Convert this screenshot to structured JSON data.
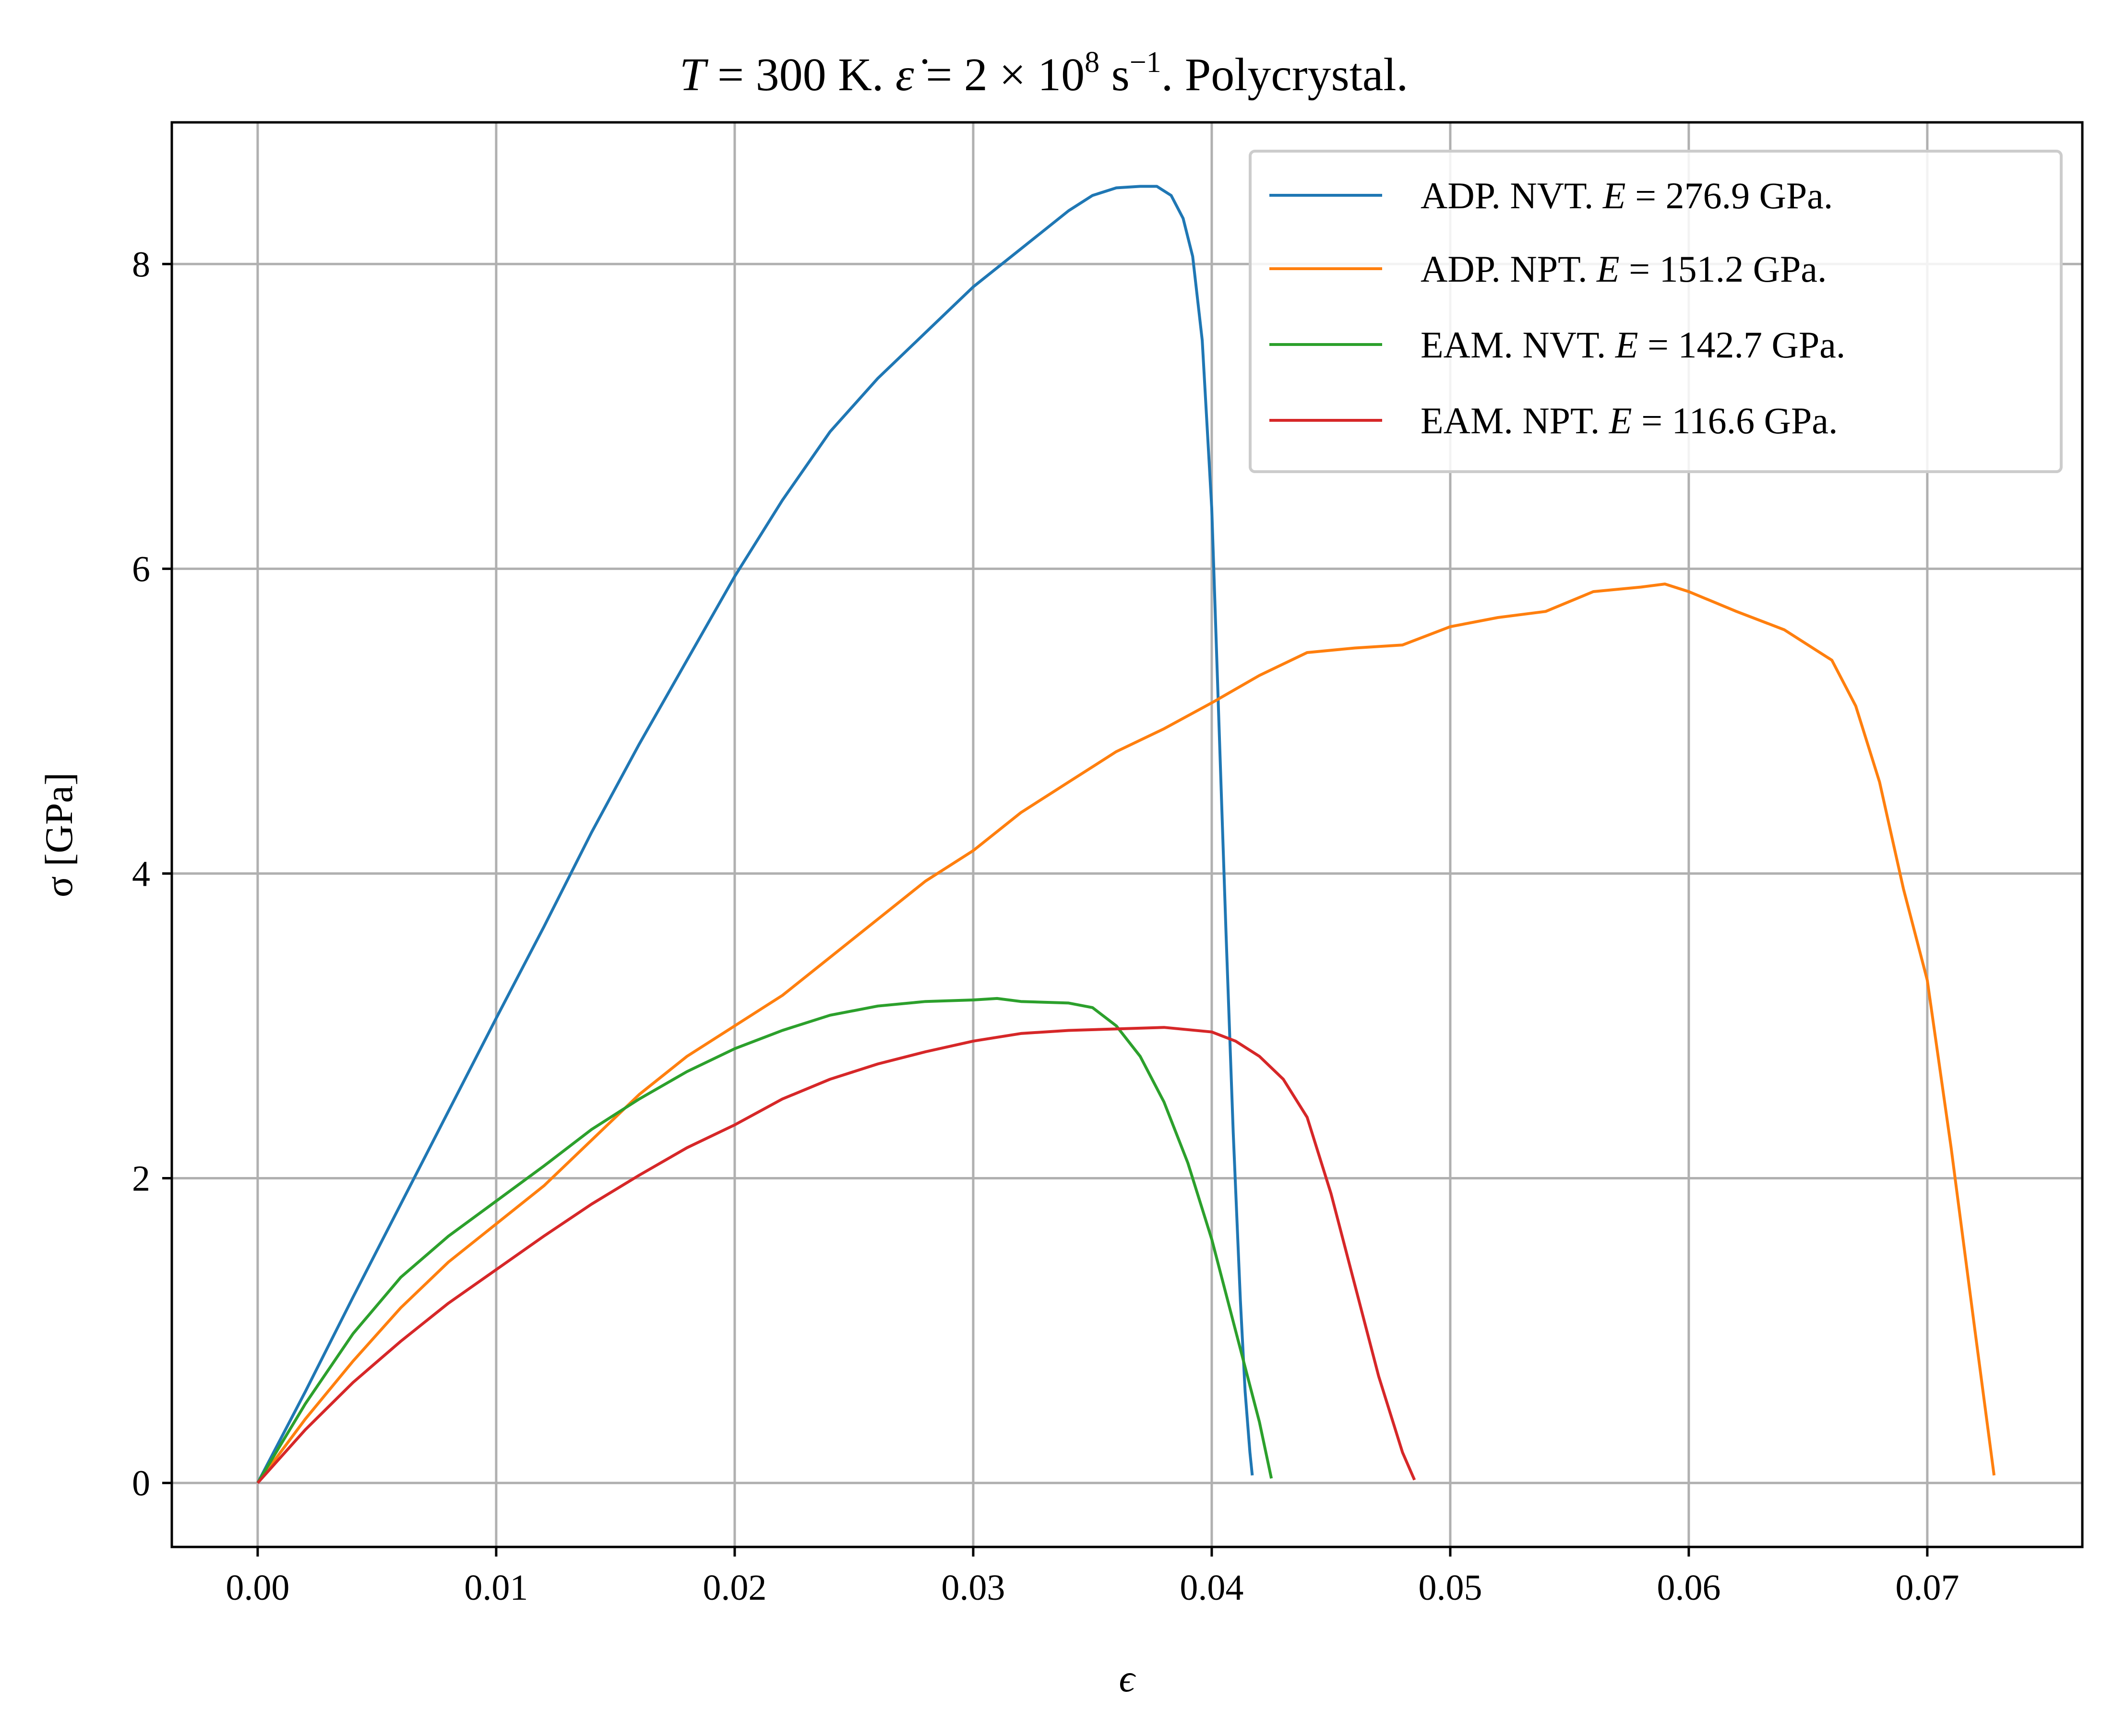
{
  "chart_data": {
    "type": "line",
    "title": {
      "T": "T",
      "eq1": " = 300 K. ",
      "edot": "ε̇",
      "eq2": " = 2 × 10",
      "exp": "8",
      "unit": " s",
      "unit_exp": "−1",
      "rest": ". Polycrystal."
    },
    "xlabel": "ϵ",
    "ylabel": "σ [GPa]",
    "xlim": [
      -0.0036,
      0.0765
    ],
    "ylim": [
      -0.42,
      8.93
    ],
    "xticks": [
      0.0,
      0.01,
      0.02,
      0.03,
      0.04,
      0.05,
      0.06,
      0.07
    ],
    "xtick_labels": [
      "0.00",
      "0.01",
      "0.02",
      "0.03",
      "0.04",
      "0.05",
      "0.06",
      "0.07"
    ],
    "yticks": [
      0,
      2,
      4,
      6,
      8
    ],
    "ytick_labels": [
      "0",
      "2",
      "4",
      "6",
      "8"
    ],
    "grid": true,
    "legend_position": "top-right",
    "series": [
      {
        "name": "ADP. NVT. E = 276.9 GPa.",
        "legend": {
          "prefix": "ADP. NVT. ",
          "var": "E",
          "suffix": " = 276.9 GPa."
        },
        "color": "#1f77b4",
        "x": [
          0,
          0.002,
          0.004,
          0.006,
          0.008,
          0.01,
          0.012,
          0.014,
          0.016,
          0.018,
          0.02,
          0.022,
          0.024,
          0.026,
          0.028,
          0.03,
          0.032,
          0.034,
          0.035,
          0.036,
          0.037,
          0.0377,
          0.0383,
          0.0388,
          0.0392,
          0.0396,
          0.04,
          0.0403,
          0.0406,
          0.0409,
          0.0412,
          0.0414,
          0.0416,
          0.0417
        ],
        "y": [
          0,
          0.6,
          1.22,
          1.83,
          2.44,
          3.05,
          3.65,
          4.27,
          4.85,
          5.4,
          5.95,
          6.45,
          6.9,
          7.25,
          7.55,
          7.85,
          8.1,
          8.35,
          8.45,
          8.5,
          8.51,
          8.51,
          8.45,
          8.3,
          8.05,
          7.5,
          6.4,
          5.0,
          3.6,
          2.3,
          1.2,
          0.6,
          0.2,
          0.05
        ]
      },
      {
        "name": "ADP. NPT. E = 151.2 GPa.",
        "legend": {
          "prefix": "ADP. NPT. ",
          "var": "E",
          "suffix": " = 151.2 GPa."
        },
        "color": "#ff7f0e",
        "x": [
          0,
          0.002,
          0.004,
          0.006,
          0.008,
          0.01,
          0.012,
          0.014,
          0.016,
          0.018,
          0.02,
          0.022,
          0.024,
          0.026,
          0.028,
          0.03,
          0.032,
          0.034,
          0.036,
          0.038,
          0.04,
          0.042,
          0.044,
          0.046,
          0.048,
          0.05,
          0.052,
          0.054,
          0.056,
          0.058,
          0.059,
          0.06,
          0.062,
          0.064,
          0.066,
          0.067,
          0.068,
          0.069,
          0.07,
          0.071,
          0.072,
          0.0728
        ],
        "y": [
          0,
          0.42,
          0.8,
          1.15,
          1.45,
          1.7,
          1.95,
          2.25,
          2.55,
          2.8,
          3.0,
          3.2,
          3.45,
          3.7,
          3.95,
          4.15,
          4.4,
          4.6,
          4.8,
          4.95,
          5.12,
          5.3,
          5.45,
          5.48,
          5.5,
          5.62,
          5.68,
          5.72,
          5.85,
          5.88,
          5.9,
          5.85,
          5.72,
          5.6,
          5.4,
          5.1,
          4.6,
          3.9,
          3.3,
          2.2,
          1.0,
          0.05
        ]
      },
      {
        "name": "EAM. NVT. E = 142.7 GPa.",
        "legend": {
          "prefix": "EAM. NVT. ",
          "var": "E",
          "suffix": " = 142.7 GPa."
        },
        "color": "#2ca02c",
        "x": [
          0,
          0.002,
          0.004,
          0.006,
          0.008,
          0.01,
          0.012,
          0.014,
          0.016,
          0.018,
          0.02,
          0.022,
          0.024,
          0.026,
          0.028,
          0.03,
          0.031,
          0.032,
          0.034,
          0.035,
          0.036,
          0.037,
          0.038,
          0.039,
          0.04,
          0.041,
          0.042,
          0.0425
        ],
        "y": [
          0,
          0.52,
          0.98,
          1.35,
          1.62,
          1.85,
          2.08,
          2.32,
          2.52,
          2.7,
          2.85,
          2.97,
          3.07,
          3.13,
          3.16,
          3.17,
          3.18,
          3.16,
          3.15,
          3.12,
          3.0,
          2.8,
          2.5,
          2.1,
          1.6,
          1.0,
          0.4,
          0.03
        ]
      },
      {
        "name": "EAM. NPT. E = 116.6 GPa.",
        "legend": {
          "prefix": "EAM. NPT. ",
          "var": "E",
          "suffix": " = 116.6 GPa."
        },
        "color": "#d62728",
        "x": [
          0,
          0.002,
          0.004,
          0.006,
          0.008,
          0.01,
          0.012,
          0.014,
          0.016,
          0.018,
          0.02,
          0.022,
          0.024,
          0.026,
          0.028,
          0.03,
          0.032,
          0.034,
          0.036,
          0.038,
          0.04,
          0.041,
          0.042,
          0.043,
          0.044,
          0.045,
          0.046,
          0.047,
          0.048,
          0.0485
        ],
        "y": [
          0,
          0.35,
          0.66,
          0.93,
          1.18,
          1.4,
          1.62,
          1.83,
          2.02,
          2.2,
          2.35,
          2.52,
          2.65,
          2.75,
          2.83,
          2.9,
          2.95,
          2.97,
          2.98,
          2.99,
          2.96,
          2.9,
          2.8,
          2.65,
          2.4,
          1.9,
          1.3,
          0.7,
          0.2,
          0.02
        ]
      }
    ]
  }
}
